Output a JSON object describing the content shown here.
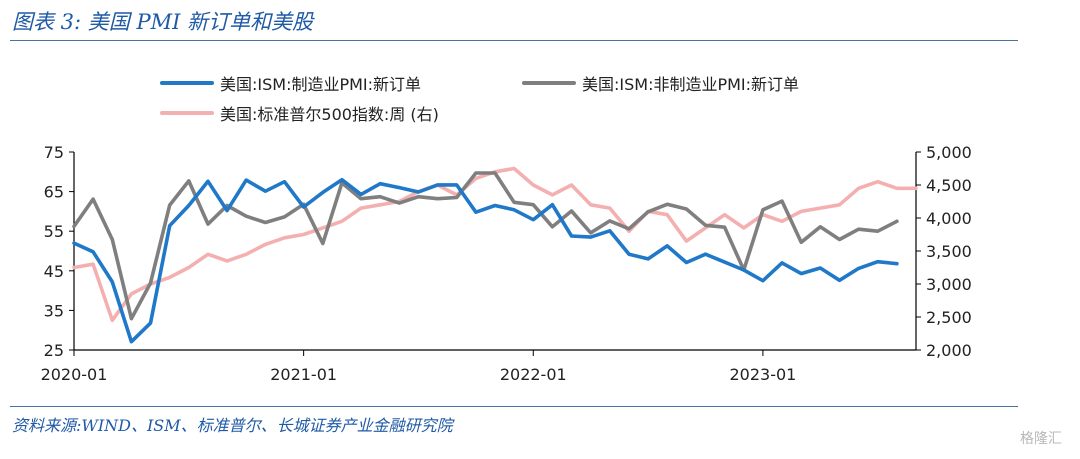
{
  "header": {
    "title": "图表 3:  美国 PMI 新订单和美股"
  },
  "footer": {
    "source": "资料来源:WIND、ISM、标准普尔、长城证券产业金融研究院",
    "watermark": "格隆汇"
  },
  "chart_data": {
    "type": "line",
    "title": "",
    "legend_position": "top",
    "grid": false,
    "x_ticks": [
      "2020-01",
      "2021-01",
      "2022-01",
      "2023-01"
    ],
    "x_range": [
      "2020-01",
      "2023-09"
    ],
    "y_left": {
      "ticks": [
        "25",
        "35",
        "45",
        "55",
        "65",
        "75"
      ],
      "range": [
        25,
        75
      ]
    },
    "y_right": {
      "ticks": [
        "2,000",
        "2,500",
        "3,000",
        "3,500",
        "4,000",
        "4,500",
        "5,000"
      ],
      "range": [
        2000,
        5000
      ]
    },
    "series": [
      {
        "name": "美国:ISM:制造业PMI:新订单",
        "axis": "left",
        "color": "#1f78c8",
        "x": [
          "2020-01",
          "2020-02",
          "2020-03",
          "2020-04",
          "2020-05",
          "2020-06",
          "2020-07",
          "2020-08",
          "2020-09",
          "2020-10",
          "2020-11",
          "2020-12",
          "2021-01",
          "2021-02",
          "2021-03",
          "2021-04",
          "2021-05",
          "2021-06",
          "2021-07",
          "2021-08",
          "2021-09",
          "2021-10",
          "2021-11",
          "2021-12",
          "2022-01",
          "2022-02",
          "2022-03",
          "2022-04",
          "2022-05",
          "2022-06",
          "2022-07",
          "2022-08",
          "2022-09",
          "2022-10",
          "2022-11",
          "2022-12",
          "2023-01",
          "2023-02",
          "2023-03",
          "2023-04",
          "2023-05",
          "2023-06",
          "2023-07",
          "2023-08"
        ],
        "values": [
          52.0,
          49.8,
          42.2,
          27.1,
          31.8,
          56.4,
          61.5,
          67.6,
          60.2,
          67.9,
          65.1,
          67.5,
          61.1,
          64.8,
          68.0,
          64.3,
          67.0,
          66.0,
          64.9,
          66.7,
          66.7,
          59.8,
          61.5,
          60.4,
          57.9,
          61.7,
          53.8,
          53.5,
          55.1,
          49.2,
          48.0,
          51.3,
          47.1,
          49.2,
          47.2,
          45.2,
          42.5,
          47.0,
          44.3,
          45.7,
          42.6,
          45.6,
          47.3,
          46.8
        ]
      },
      {
        "name": "美国:ISM:非制造业PMI:新订单",
        "axis": "left",
        "color": "#7f7f7f",
        "x": [
          "2020-01",
          "2020-02",
          "2020-03",
          "2020-04",
          "2020-05",
          "2020-06",
          "2020-07",
          "2020-08",
          "2020-09",
          "2020-10",
          "2020-11",
          "2020-12",
          "2021-01",
          "2021-02",
          "2021-03",
          "2021-04",
          "2021-05",
          "2021-06",
          "2021-07",
          "2021-08",
          "2021-09",
          "2021-10",
          "2021-11",
          "2021-12",
          "2022-01",
          "2022-02",
          "2022-03",
          "2022-04",
          "2022-05",
          "2022-06",
          "2022-07",
          "2022-08",
          "2022-09",
          "2022-10",
          "2022-11",
          "2022-12",
          "2023-01",
          "2023-02",
          "2023-03",
          "2023-04",
          "2023-05",
          "2023-06",
          "2023-07",
          "2023-08"
        ],
        "values": [
          56.2,
          63.1,
          52.9,
          32.9,
          41.9,
          61.6,
          67.7,
          56.8,
          61.5,
          58.8,
          57.2,
          58.6,
          61.8,
          51.9,
          67.2,
          63.2,
          63.7,
          62.1,
          63.7,
          63.2,
          63.5,
          69.7,
          69.7,
          62.3,
          61.7,
          56.1,
          60.1,
          54.6,
          57.6,
          55.6,
          59.9,
          61.8,
          60.6,
          56.5,
          56.0,
          45.2,
          60.4,
          62.6,
          52.2,
          56.1,
          52.9,
          55.5,
          55.0,
          57.5
        ]
      },
      {
        "name": "美国:标准普尔500指数:周 (右)",
        "axis": "right",
        "color": "#f4b0b0",
        "x": [
          "2020-01",
          "2020-02",
          "2020-03",
          "2020-04",
          "2020-05",
          "2020-06",
          "2020-07",
          "2020-08",
          "2020-09",
          "2020-10",
          "2020-11",
          "2020-12",
          "2021-01",
          "2021-02",
          "2021-03",
          "2021-04",
          "2021-05",
          "2021-06",
          "2021-07",
          "2021-08",
          "2021-09",
          "2021-10",
          "2021-11",
          "2021-12",
          "2022-01",
          "2022-02",
          "2022-03",
          "2022-04",
          "2022-05",
          "2022-06",
          "2022-07",
          "2022-08",
          "2022-09",
          "2022-10",
          "2022-11",
          "2022-12",
          "2023-01",
          "2023-02",
          "2023-03",
          "2023-04",
          "2023-05",
          "2023-06",
          "2023-07",
          "2023-08",
          "2023-09"
        ],
        "values": [
          3250,
          3300,
          2450,
          2850,
          3000,
          3100,
          3250,
          3450,
          3350,
          3450,
          3600,
          3700,
          3750,
          3850,
          3950,
          4150,
          4200,
          4250,
          4400,
          4500,
          4350,
          4600,
          4700,
          4750,
          4500,
          4350,
          4500,
          4200,
          4150,
          3800,
          4100,
          4050,
          3650,
          3850,
          4050,
          3850,
          4050,
          3950,
          4100,
          4150,
          4200,
          4450,
          4550,
          4450,
          4450
        ]
      }
    ]
  }
}
